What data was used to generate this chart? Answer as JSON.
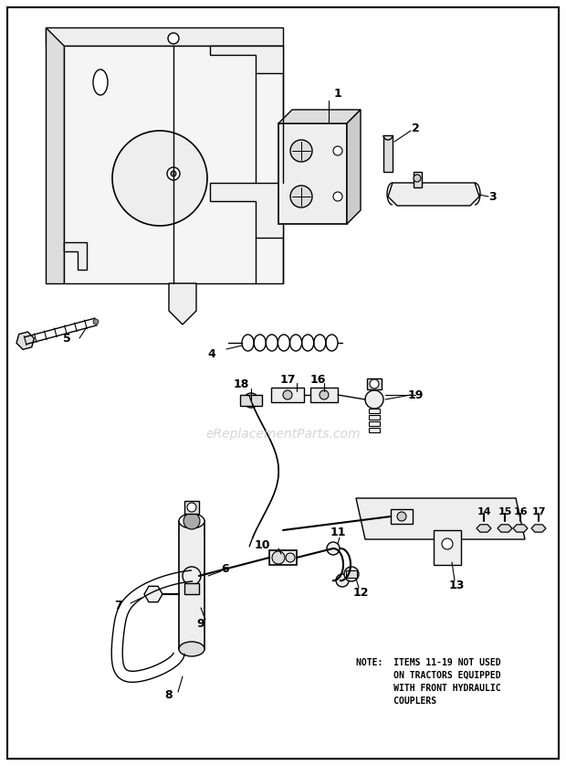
{
  "background_color": "#ffffff",
  "border_color": "#000000",
  "watermark_text": "eReplacementParts.com",
  "watermark_color": "#bbbbbb",
  "note_lines": [
    "NOTE:  ITEMS 11-19 NOT USED",
    "       ON TRACTORS EQUIPPED",
    "       WITH FRONT HYDRAULIC",
    "       COUPLERS"
  ],
  "note_fontsize": 7.0,
  "fig_width": 6.2,
  "fig_height": 8.38,
  "dpi": 100
}
